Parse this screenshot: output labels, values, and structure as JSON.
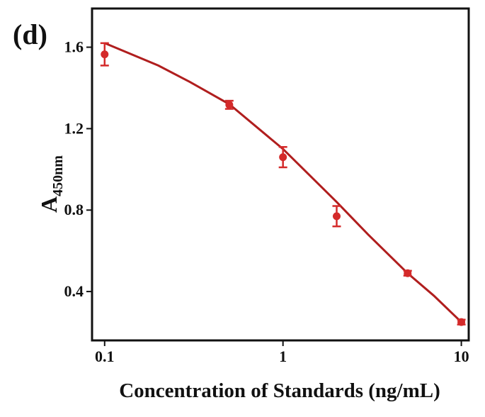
{
  "chart_data": {
    "type": "scatter",
    "panel_label": "(d)",
    "x_label": "Concentration of Standards (ng/mL)",
    "y_label": {
      "main": "A",
      "subscript": "450nm"
    },
    "x_scale": "log",
    "xlim": [
      0.085,
      11
    ],
    "xticks": [
      0.1,
      1,
      10
    ],
    "ylim": [
      0.16,
      1.79
    ],
    "yticks": [
      0.4,
      0.8,
      1.2,
      1.6
    ],
    "series": [
      {
        "x": [
          0.1,
          0.5,
          1,
          2,
          5,
          10
        ],
        "values": [
          1.565,
          1.317,
          1.06,
          0.77,
          0.49,
          0.25
        ],
        "errors": [
          0.055,
          0.02,
          0.05,
          0.05,
          0.012,
          0.012
        ],
        "color": "#d42a2a"
      }
    ],
    "fit": {
      "x": [
        0.1,
        0.2,
        0.3,
        0.5,
        1,
        2,
        3,
        5,
        7,
        10
      ],
      "values": [
        1.62,
        1.51,
        1.43,
        1.32,
        1.1,
        0.84,
        0.68,
        0.49,
        0.38,
        0.25
      ],
      "color": "#b01e1e"
    }
  }
}
